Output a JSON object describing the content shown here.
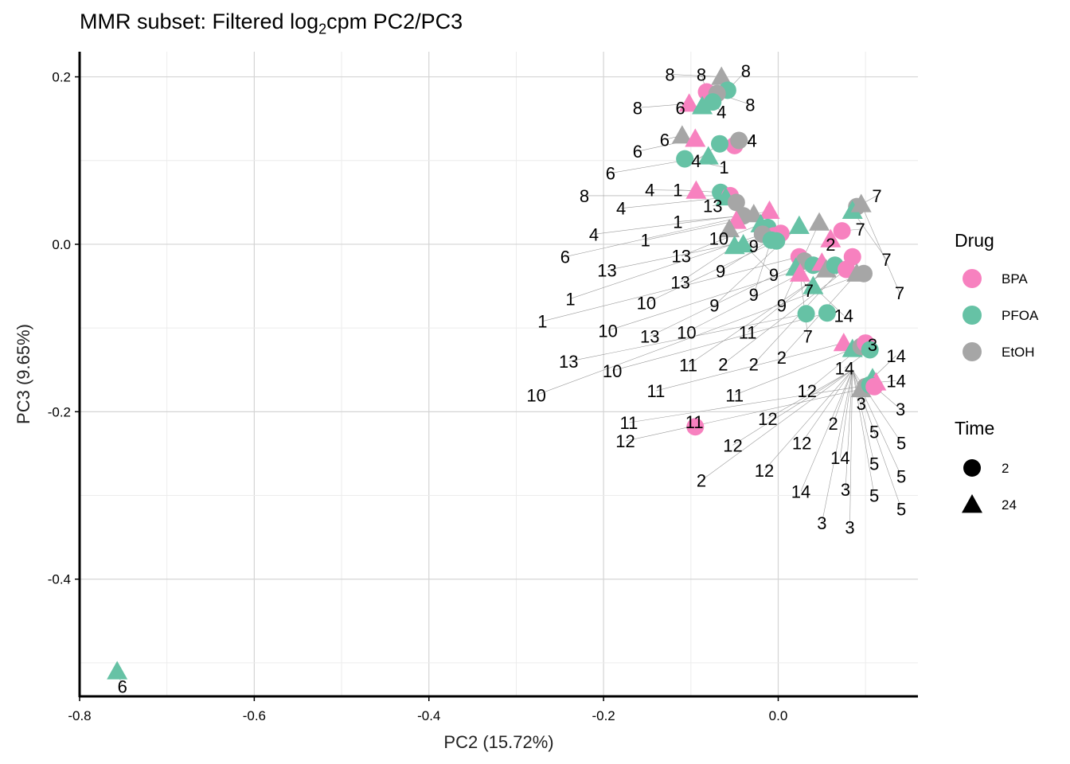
{
  "chart_data": {
    "type": "scatter",
    "title_main": "MMR subset: Filtered log",
    "title_sub": "2",
    "title_tail": "cpm PC2/PC3",
    "xlabel": "PC2 (15.72%)",
    "ylabel": "PC3 (9.65%)",
    "xlim": [
      -0.8,
      0.16
    ],
    "ylim": [
      -0.54,
      0.23
    ],
    "xticks": [
      -0.8,
      -0.6,
      -0.4,
      -0.2,
      0.0
    ],
    "xtick_labels": [
      "-0.8",
      "-0.6",
      "-0.4",
      "-0.2",
      "0.0"
    ],
    "yticks": [
      0.2,
      0.0,
      -0.2,
      -0.4
    ],
    "ytick_labels": [
      "0.2",
      "0.0",
      "-0.2",
      "-0.4"
    ],
    "grid": true,
    "legend_position": "right",
    "legend_drug": {
      "title": "Drug",
      "items": [
        {
          "label": "BPA",
          "color": "#F781BF"
        },
        {
          "label": "PFOA",
          "color": "#66C2A5"
        },
        {
          "label": "EtOH",
          "color": "#A6A6A6"
        }
      ]
    },
    "legend_time": {
      "title": "Time",
      "items": [
        {
          "label": "2",
          "shape": "circle"
        },
        {
          "label": "24",
          "shape": "triangle"
        }
      ]
    },
    "colors": {
      "BPA": "#F781BF",
      "PFOA": "#66C2A5",
      "EtOH": "#A6A6A6"
    },
    "points": [
      {
        "x": -0.757,
        "y": -0.51,
        "drug": "PFOA",
        "time": "24",
        "label": "6",
        "lx": -0.751,
        "ly": -0.528
      },
      {
        "x": -0.095,
        "y": -0.218,
        "drug": "BPA",
        "time": "2",
        "label": "11",
        "lx": -0.096,
        "ly": -0.212
      },
      {
        "x": -0.065,
        "y": 0.2,
        "drug": "EtOH",
        "time": "24",
        "label": "8",
        "lx": -0.124,
        "ly": 0.203
      },
      {
        "x": -0.082,
        "y": 0.182,
        "drug": "BPA",
        "time": "2",
        "label": "8",
        "lx": -0.088,
        "ly": 0.203
      },
      {
        "x": -0.058,
        "y": 0.184,
        "drug": "PFOA",
        "time": "2",
        "label": "8",
        "lx": -0.037,
        "ly": 0.207
      },
      {
        "x": -0.07,
        "y": 0.18,
        "drug": "EtOH",
        "time": "2",
        "label": "8",
        "lx": -0.032,
        "ly": 0.167
      },
      {
        "x": -0.102,
        "y": 0.168,
        "drug": "BPA",
        "time": "24",
        "label": "8",
        "lx": -0.161,
        "ly": 0.163
      },
      {
        "x": -0.087,
        "y": 0.165,
        "drug": "PFOA",
        "time": "24",
        "label": "6",
        "lx": -0.112,
        "ly": 0.163
      },
      {
        "x": -0.075,
        "y": 0.17,
        "drug": "PFOA",
        "time": "2",
        "label": "4",
        "lx": -0.065,
        "ly": 0.158
      },
      {
        "x": -0.11,
        "y": 0.13,
        "drug": "EtOH",
        "time": "24",
        "label": "6",
        "lx": -0.13,
        "ly": 0.125
      },
      {
        "x": -0.095,
        "y": 0.126,
        "drug": "BPA",
        "time": "24",
        "label": "6",
        "lx": -0.161,
        "ly": 0.111
      },
      {
        "x": -0.05,
        "y": 0.118,
        "drug": "BPA",
        "time": "2",
        "label": "4",
        "lx": -0.03,
        "ly": 0.124
      },
      {
        "x": -0.045,
        "y": 0.124,
        "drug": "EtOH",
        "time": "2",
        "label": "4",
        "lx": -0.03,
        "ly": 0.124
      },
      {
        "x": -0.067,
        "y": 0.12,
        "drug": "PFOA",
        "time": "2",
        "label": "4",
        "lx": -0.094,
        "ly": 0.1
      },
      {
        "x": -0.107,
        "y": 0.102,
        "drug": "PFOA",
        "time": "2",
        "label": "1",
        "lx": -0.062,
        "ly": 0.092
      },
      {
        "x": -0.08,
        "y": 0.105,
        "drug": "PFOA",
        "time": "24",
        "label": "6",
        "lx": -0.192,
        "ly": 0.085
      },
      {
        "x": -0.094,
        "y": 0.064,
        "drug": "BPA",
        "time": "24",
        "label": "4",
        "lx": -0.147,
        "ly": 0.065
      },
      {
        "x": -0.066,
        "y": 0.062,
        "drug": "PFOA",
        "time": "2",
        "label": "1",
        "lx": -0.115,
        "ly": 0.065
      },
      {
        "x": -0.055,
        "y": 0.058,
        "drug": "BPA",
        "time": "2",
        "label": "8",
        "lx": -0.222,
        "ly": 0.058
      },
      {
        "x": -0.06,
        "y": 0.056,
        "drug": "PFOA",
        "time": "24",
        "label": "4",
        "lx": -0.18,
        "ly": 0.043
      },
      {
        "x": -0.048,
        "y": 0.05,
        "drug": "EtOH",
        "time": "2",
        "label": "13",
        "lx": -0.075,
        "ly": 0.046
      },
      {
        "x": -0.04,
        "y": 0.034,
        "drug": "EtOH",
        "time": "2",
        "label": "1",
        "lx": -0.115,
        "ly": 0.027
      },
      {
        "x": -0.028,
        "y": 0.036,
        "drug": "EtOH",
        "time": "24",
        "label": "4",
        "lx": -0.211,
        "ly": 0.012
      },
      {
        "x": -0.048,
        "y": 0.028,
        "drug": "BPA",
        "time": "24",
        "label": "1",
        "lx": -0.152,
        "ly": 0.005
      },
      {
        "x": -0.056,
        "y": 0.018,
        "drug": "EtOH",
        "time": "24",
        "label": "10",
        "lx": -0.068,
        "ly": 0.007
      },
      {
        "x": -0.01,
        "y": 0.04,
        "drug": "BPA",
        "time": "24",
        "label": "6",
        "lx": -0.244,
        "ly": -0.015
      },
      {
        "x": -0.02,
        "y": 0.024,
        "drug": "PFOA",
        "time": "24",
        "label": "13",
        "lx": -0.111,
        "ly": -0.014
      },
      {
        "x": -0.012,
        "y": 0.02,
        "drug": "PFOA",
        "time": "2",
        "label": "9",
        "lx": -0.028,
        "ly": -0.002
      },
      {
        "x": -0.005,
        "y": 0.01,
        "drug": "BPA",
        "time": "2",
        "label": "13",
        "lx": -0.196,
        "ly": -0.031
      },
      {
        "x": 0.003,
        "y": 0.013,
        "drug": "BPA",
        "time": "2",
        "label": "9",
        "lx": -0.066,
        "ly": -0.032
      },
      {
        "x": -0.05,
        "y": -0.002,
        "drug": "PFOA",
        "time": "24",
        "label": "13",
        "lx": -0.112,
        "ly": -0.045
      },
      {
        "x": -0.04,
        "y": 0.0,
        "drug": "PFOA",
        "time": "24",
        "label": "9",
        "lx": -0.005,
        "ly": -0.036
      },
      {
        "x": -0.018,
        "y": 0.012,
        "drug": "EtOH",
        "time": "2",
        "label": "1",
        "lx": -0.238,
        "ly": -0.065
      },
      {
        "x": -0.008,
        "y": 0.005,
        "drug": "PFOA",
        "time": "2",
        "label": "9",
        "lx": -0.028,
        "ly": -0.06
      },
      {
        "x": -0.002,
        "y": 0.004,
        "drug": "PFOA",
        "time": "2",
        "label": "10",
        "lx": -0.151,
        "ly": -0.07
      },
      {
        "x": 0.024,
        "y": 0.022,
        "drug": "PFOA",
        "time": "24",
        "label": "9",
        "lx": -0.073,
        "ly": -0.073
      },
      {
        "x": 0.047,
        "y": 0.026,
        "drug": "EtOH",
        "time": "24",
        "label": "9",
        "lx": 0.004,
        "ly": -0.073
      },
      {
        "x": 0.06,
        "y": 0.006,
        "drug": "BPA",
        "time": "24",
        "label": "2",
        "lx": 0.06,
        "ly": 0.0
      },
      {
        "x": 0.073,
        "y": 0.016,
        "drug": "BPA",
        "time": "2",
        "label": "7",
        "lx": 0.094,
        "ly": 0.018
      },
      {
        "x": 0.09,
        "y": 0.045,
        "drug": "EtOH",
        "time": "2",
        "label": "7",
        "lx": 0.113,
        "ly": 0.058
      },
      {
        "x": 0.085,
        "y": 0.04,
        "drug": "PFOA",
        "time": "24",
        "label": "7",
        "lx": 0.124,
        "ly": -0.018
      },
      {
        "x": 0.095,
        "y": 0.048,
        "drug": "EtOH",
        "time": "24",
        "label": "7",
        "lx": 0.139,
        "ly": -0.058
      },
      {
        "x": 0.024,
        "y": -0.015,
        "drug": "BPA",
        "time": "2",
        "label": "1",
        "lx": -0.27,
        "ly": -0.092
      },
      {
        "x": 0.03,
        "y": -0.02,
        "drug": "EtOH",
        "time": "2",
        "label": "13",
        "lx": -0.147,
        "ly": -0.11
      },
      {
        "x": 0.04,
        "y": -0.025,
        "drug": "PFOA",
        "time": "2",
        "label": "10",
        "lx": -0.195,
        "ly": -0.103
      },
      {
        "x": 0.05,
        "y": -0.022,
        "drug": "BPA",
        "time": "24",
        "label": "10",
        "lx": -0.105,
        "ly": -0.105
      },
      {
        "x": 0.055,
        "y": -0.03,
        "drug": "EtOH",
        "time": "24",
        "label": "11",
        "lx": -0.035,
        "ly": -0.105
      },
      {
        "x": 0.02,
        "y": -0.028,
        "drug": "PFOA",
        "time": "24",
        "label": "7",
        "lx": 0.035,
        "ly": -0.055
      },
      {
        "x": 0.025,
        "y": -0.035,
        "drug": "BPA",
        "time": "24",
        "label": "7",
        "lx": 0.034,
        "ly": -0.11
      },
      {
        "x": 0.04,
        "y": -0.05,
        "drug": "PFOA",
        "time": "24",
        "label": "14",
        "lx": 0.075,
        "ly": -0.085
      },
      {
        "x": 0.032,
        "y": -0.083,
        "drug": "PFOA",
        "time": "2",
        "label": "13",
        "lx": -0.24,
        "ly": -0.14
      },
      {
        "x": 0.056,
        "y": -0.082,
        "drug": "PFOA",
        "time": "2",
        "label": "10",
        "lx": -0.19,
        "ly": -0.151
      },
      {
        "x": 0.065,
        "y": -0.025,
        "drug": "PFOA",
        "time": "2",
        "label": "11",
        "lx": -0.103,
        "ly": -0.144
      },
      {
        "x": 0.078,
        "y": -0.03,
        "drug": "BPA",
        "time": "2",
        "label": "2",
        "lx": -0.063,
        "ly": -0.143
      },
      {
        "x": 0.085,
        "y": -0.015,
        "drug": "BPA",
        "time": "2",
        "label": "2",
        "lx": -0.028,
        "ly": -0.143
      },
      {
        "x": 0.09,
        "y": -0.035,
        "drug": "EtOH",
        "time": "24",
        "label": "2",
        "lx": 0.004,
        "ly": -0.135
      },
      {
        "x": 0.098,
        "y": -0.035,
        "drug": "EtOH",
        "time": "2",
        "label": "10",
        "lx": -0.277,
        "ly": -0.18
      },
      {
        "x": 0.075,
        "y": -0.118,
        "drug": "BPA",
        "time": "24",
        "label": "11",
        "lx": -0.14,
        "ly": -0.175
      },
      {
        "x": 0.085,
        "y": -0.125,
        "drug": "PFOA",
        "time": "24",
        "label": "11",
        "lx": -0.05,
        "ly": -0.18
      },
      {
        "x": 0.095,
        "y": -0.122,
        "drug": "EtOH",
        "time": "2",
        "label": "3",
        "lx": 0.108,
        "ly": -0.12
      },
      {
        "x": 0.1,
        "y": -0.118,
        "drug": "BPA",
        "time": "2",
        "label": "12",
        "lx": 0.033,
        "ly": -0.175
      },
      {
        "x": 0.105,
        "y": -0.126,
        "drug": "PFOA",
        "time": "2",
        "label": "14",
        "lx": 0.076,
        "ly": -0.148
      },
      {
        "x": 0.108,
        "y": -0.16,
        "drug": "PFOA",
        "time": "24",
        "label": "14",
        "lx": 0.135,
        "ly": -0.133
      },
      {
        "x": 0.112,
        "y": -0.165,
        "drug": "BPA",
        "time": "24",
        "label": "14",
        "lx": 0.135,
        "ly": -0.163
      },
      {
        "x": 0.1,
        "y": -0.17,
        "drug": "EtOH",
        "time": "2",
        "label": "3",
        "lx": 0.095,
        "ly": -0.19
      },
      {
        "x": 0.095,
        "y": -0.173,
        "drug": "EtOH",
        "time": "24",
        "label": "12",
        "lx": -0.175,
        "ly": -0.235
      },
      {
        "x": 0.105,
        "y": -0.168,
        "drug": "PFOA",
        "time": "2",
        "label": "11",
        "lx": -0.171,
        "ly": -0.213
      },
      {
        "x": 0.11,
        "y": -0.17,
        "drug": "BPA",
        "time": "2",
        "label": "3",
        "lx": 0.14,
        "ly": -0.197
      }
    ],
    "extra_labels": [
      {
        "text": "12",
        "lx": -0.012,
        "ly": -0.208
      },
      {
        "text": "12",
        "lx": -0.052,
        "ly": -0.24
      },
      {
        "text": "12",
        "lx": 0.027,
        "ly": -0.237
      },
      {
        "text": "12",
        "lx": -0.016,
        "ly": -0.27
      },
      {
        "text": "2",
        "lx": -0.088,
        "ly": -0.282
      },
      {
        "text": "2",
        "lx": 0.063,
        "ly": -0.214
      },
      {
        "text": "14",
        "lx": 0.071,
        "ly": -0.255
      },
      {
        "text": "14",
        "lx": 0.026,
        "ly": -0.295
      },
      {
        "text": "3",
        "lx": 0.077,
        "ly": -0.293
      },
      {
        "text": "3",
        "lx": 0.05,
        "ly": -0.333
      },
      {
        "text": "3",
        "lx": 0.082,
        "ly": -0.338
      },
      {
        "text": "5",
        "lx": 0.11,
        "ly": -0.224
      },
      {
        "text": "5",
        "lx": 0.141,
        "ly": -0.237
      },
      {
        "text": "5",
        "lx": 0.11,
        "ly": -0.262
      },
      {
        "text": "5",
        "lx": 0.141,
        "ly": -0.277
      },
      {
        "text": "5",
        "lx": 0.11,
        "ly": -0.3
      },
      {
        "text": "5",
        "lx": 0.141,
        "ly": -0.316
      }
    ]
  }
}
